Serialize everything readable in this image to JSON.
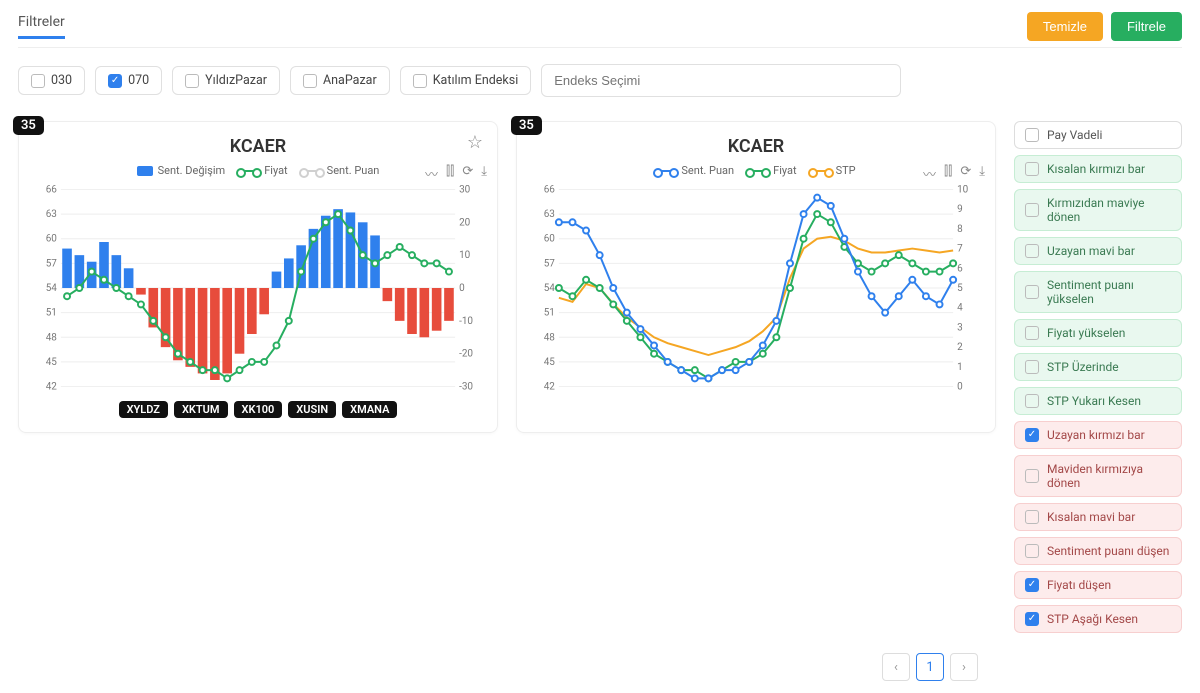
{
  "header": {
    "title": "Filtreler",
    "clear_btn": "Temizle",
    "filter_btn": "Filtrele"
  },
  "top_filters": [
    {
      "label": "030",
      "checked": false
    },
    {
      "label": "070",
      "checked": true
    },
    {
      "label": "YıldızPazar",
      "checked": false
    },
    {
      "label": "AnaPazar",
      "checked": false
    },
    {
      "label": "Katılım Endeksi",
      "checked": false
    }
  ],
  "search_placeholder": "Endeks Seçimi",
  "chart1": {
    "rank": "35",
    "title": "KCAER",
    "type": "bar+line",
    "legend": [
      {
        "label": "Sent. Değişim",
        "style": "box",
        "color": "#2f80ed"
      },
      {
        "label": "Fiyat",
        "style": "line",
        "color": "#27ae60"
      },
      {
        "label": "Sent. Puan",
        "style": "line",
        "color": "#d0d0d0"
      }
    ],
    "left_axis": {
      "min": 42,
      "max": 66,
      "step": 3,
      "label_fontsize": 10
    },
    "right_axis": {
      "min": -30,
      "max": 30,
      "step": 10,
      "label_fontsize": 10
    },
    "bars": [
      12,
      10,
      8,
      14,
      10,
      6,
      -2,
      -12,
      -18,
      -22,
      -24,
      -26,
      -28,
      -26,
      -20,
      -14,
      -8,
      5,
      9,
      13,
      18,
      22,
      24,
      23,
      20,
      16,
      -4,
      -10,
      -14,
      -15,
      -13,
      -10
    ],
    "bar_pos_color": "#2f80ed",
    "bar_neg_color": "#e74c3c",
    "line_fiyat": [
      53,
      54,
      56,
      55,
      54,
      53,
      52,
      50,
      48,
      46,
      45,
      44,
      44,
      43,
      44,
      45,
      45,
      47,
      50,
      56,
      60,
      62,
      63,
      61,
      58,
      57,
      58,
      59,
      58,
      57,
      57,
      56
    ],
    "line_fiyat_color": "#27ae60",
    "grid_color": "#eeeeee",
    "background_color": "#ffffff",
    "x_tags": [
      "XYLDZ",
      "XKTUM",
      "XK100",
      "XUSIN",
      "XMANA"
    ]
  },
  "chart2": {
    "rank": "35",
    "title": "KCAER",
    "type": "multi-line",
    "legend": [
      {
        "label": "Sent. Puan",
        "style": "line",
        "color": "#2f80ed"
      },
      {
        "label": "Fiyat",
        "style": "line",
        "color": "#27ae60"
      },
      {
        "label": "STP",
        "style": "line",
        "color": "#f5a623"
      }
    ],
    "left_axis": {
      "min": 42,
      "max": 66,
      "step": 3,
      "label_fontsize": 10
    },
    "right_axis": {
      "min": 0,
      "max": 10,
      "step": 1,
      "label_fontsize": 10
    },
    "line_sent": [
      62,
      62,
      61,
      58,
      54,
      51,
      49,
      47,
      45,
      44,
      43,
      43,
      44,
      44,
      45,
      47,
      50,
      57,
      63,
      65,
      64,
      60,
      56,
      53,
      51,
      53,
      55,
      53,
      52,
      55
    ],
    "line_sent_color": "#2f80ed",
    "line_fiyat": [
      54,
      53,
      55,
      54,
      52,
      50,
      48,
      46,
      45,
      44,
      44,
      43,
      44,
      45,
      45,
      46,
      48,
      54,
      60,
      63,
      62,
      59,
      57,
      56,
      57,
      58,
      57,
      56,
      56,
      57
    ],
    "line_fiyat_color": "#27ae60",
    "line_stp": [
      4.5,
      4.3,
      5.2,
      5.0,
      4.2,
      3.5,
      3.0,
      2.5,
      2.2,
      2.0,
      1.8,
      1.6,
      1.8,
      2.0,
      2.3,
      2.8,
      3.5,
      5.5,
      7.0,
      7.5,
      7.6,
      7.4,
      7.0,
      6.8,
      6.8,
      6.9,
      7.0,
      6.9,
      6.8,
      6.9
    ],
    "line_stp_color": "#f5a623",
    "grid_color": "#eeeeee",
    "background_color": "#ffffff"
  },
  "side_filters": [
    {
      "label": "Pay Vadeli",
      "theme": "white",
      "checked": false
    },
    {
      "label": "Kısalan kırmızı bar",
      "theme": "green",
      "checked": false
    },
    {
      "label": "Kırmızıdan maviye dönen",
      "theme": "green",
      "checked": false
    },
    {
      "label": "Uzayan mavi bar",
      "theme": "green",
      "checked": false
    },
    {
      "label": "Sentiment puanı yükselen",
      "theme": "green",
      "checked": false
    },
    {
      "label": "Fiyatı yükselen",
      "theme": "green",
      "checked": false
    },
    {
      "label": "STP Üzerinde",
      "theme": "green",
      "checked": false
    },
    {
      "label": "STP Yukarı Kesen",
      "theme": "green",
      "checked": false
    },
    {
      "label": "Uzayan kırmızı bar",
      "theme": "red",
      "checked": true
    },
    {
      "label": "Maviden kırmızıya dönen",
      "theme": "red",
      "checked": false
    },
    {
      "label": "Kısalan mavi bar",
      "theme": "red",
      "checked": false
    },
    {
      "label": "Sentiment puanı düşen",
      "theme": "red",
      "checked": false
    },
    {
      "label": "Fiyatı düşen",
      "theme": "red",
      "checked": true
    },
    {
      "label": "STP Aşağı Kesen",
      "theme": "red",
      "checked": true
    }
  ],
  "pager": {
    "current": "1"
  },
  "style": {
    "accent_blue": "#2f80ed",
    "accent_green": "#27ae60",
    "accent_orange": "#f5a623",
    "accent_red": "#e74c3c"
  }
}
